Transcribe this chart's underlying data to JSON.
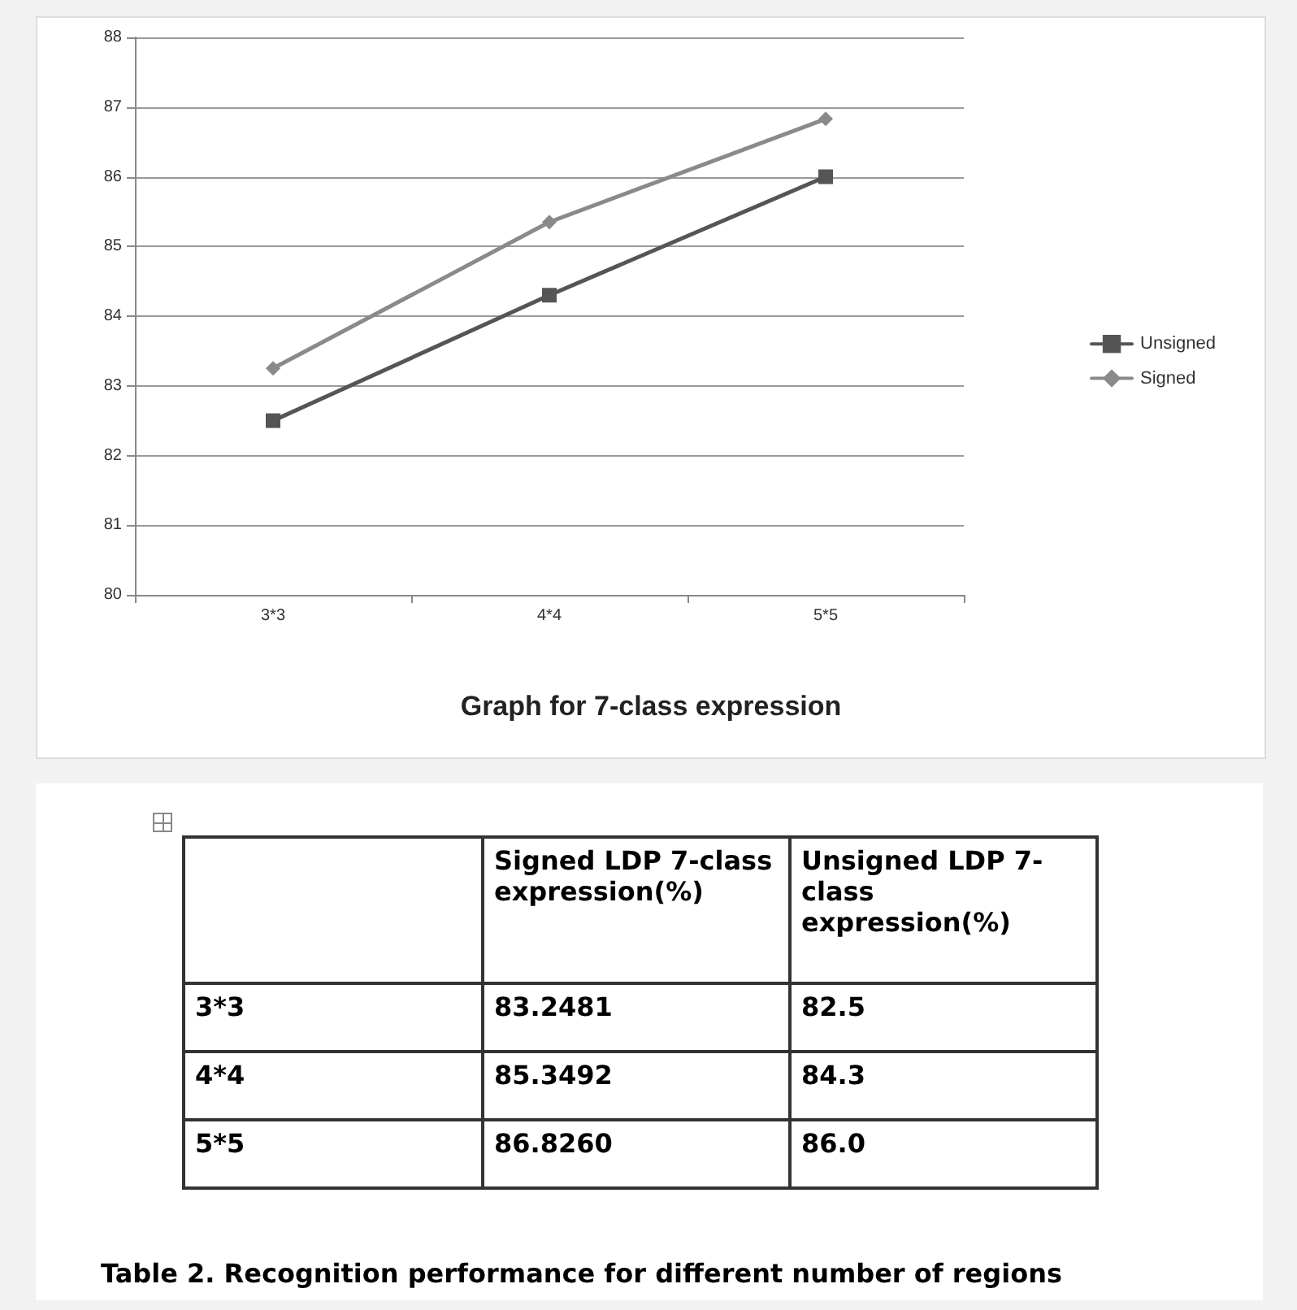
{
  "chart_data": [
    {
      "type": "line",
      "title": "Graph for 7-class expression",
      "categories": [
        "3*3",
        "4*4",
        "5*5"
      ],
      "series": [
        {
          "name": "Unsigned",
          "color": "#555555",
          "marker": "square",
          "values": [
            82.5,
            84.3,
            86.0
          ]
        },
        {
          "name": "Signed",
          "color": "#8a8a8a",
          "marker": "diamond",
          "values": [
            83.25,
            85.35,
            86.83
          ]
        }
      ],
      "ylim": [
        80,
        88
      ],
      "yticks": [
        80,
        81,
        82,
        83,
        84,
        85,
        86,
        87,
        88
      ],
      "grid": "y",
      "legend": "right"
    },
    {
      "type": "other",
      "categories": [
        "3*3",
        "4*4",
        "5*5"
      ],
      "annotations": [
        "Signed LDP 7-class expression(%)",
        "Unsigned LDP 7-class expression(%)",
        "83.2481",
        "82.5",
        "85.3492",
        "84.3",
        "86.8260",
        "86.0",
        "Table 2. Recognition performance for different number of regions"
      ]
    }
  ]
}
